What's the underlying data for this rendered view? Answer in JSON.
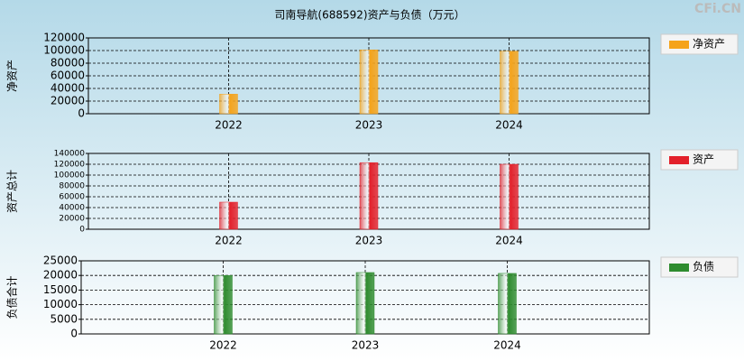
{
  "title": "司南导航(688592)资产与负债（万元）",
  "watermark": "CFi.CN",
  "chart_data": [
    {
      "type": "bar",
      "y_label": "净资产",
      "categories": [
        "2022",
        "2023",
        "2024"
      ],
      "series": [
        {
          "name": "净资产",
          "color": "#f5a31a",
          "values": [
            31000,
            101000,
            99000
          ]
        }
      ],
      "ylim": [
        0,
        120000
      ],
      "yticks": [
        0,
        20000,
        40000,
        60000,
        80000,
        100000,
        120000
      ],
      "grid": true
    },
    {
      "type": "bar",
      "y_label": "资产总计",
      "categories": [
        "2022",
        "2023",
        "2024"
      ],
      "series": [
        {
          "name": "资产",
          "color": "#e3202a",
          "values": [
            50000,
            123000,
            120000
          ]
        }
      ],
      "ylim": [
        0,
        140000
      ],
      "yticks": [
        0,
        20000,
        40000,
        60000,
        80000,
        100000,
        120000,
        140000
      ],
      "grid": true
    },
    {
      "type": "bar",
      "y_label": "负债合计",
      "categories": [
        "2022",
        "2023",
        "2024"
      ],
      "series": [
        {
          "name": "负债",
          "color": "#2e8b2e",
          "values": [
            20000,
            21000,
            20700
          ]
        }
      ],
      "ylim": [
        0,
        25000
      ],
      "yticks": [
        0,
        5000,
        10000,
        15000,
        20000,
        25000
      ],
      "grid": true
    }
  ]
}
